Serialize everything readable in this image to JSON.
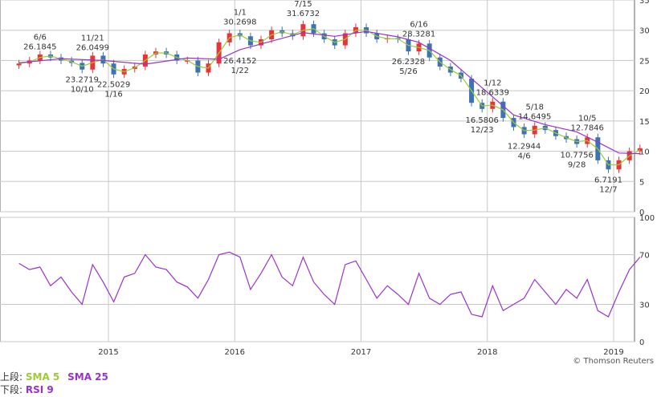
{
  "colors": {
    "up": "#e8333a",
    "down": "#3d72b6",
    "sma5": "#9acd32",
    "sma25": "#9932cc",
    "rsi": "#9932cc",
    "grid": "#c8c8c8",
    "frame": "#666666",
    "label": "#333333"
  },
  "legend": {
    "upper_label": "上段:",
    "sma5": "SMA 5",
    "sma25": "SMA 25",
    "lower_label": "下段:",
    "rsi": "RSI 9"
  },
  "credit": "© Thomson Reuters",
  "chart_data": [
    {
      "type": "candlestick",
      "ylim": [
        0,
        35
      ],
      "yticks": [
        0,
        5,
        10,
        15,
        20,
        25,
        30,
        35
      ],
      "x_range": [
        "2014-04",
        "2019-03"
      ],
      "xticks": [
        "2015",
        "2016",
        "2017",
        "2018",
        "2019"
      ],
      "grid": true,
      "series": [
        {
          "name": "SMA 5",
          "indicator": "sma5"
        },
        {
          "name": "SMA 25",
          "indicator": "sma25"
        }
      ],
      "closes": [
        {
          "t": "2014-04",
          "v": 24.5
        },
        {
          "t": "2014-05",
          "v": 25.0
        },
        {
          "t": "2014-06",
          "v": 26.0
        },
        {
          "t": "2014-07",
          "v": 25.5
        },
        {
          "t": "2014-08",
          "v": 25.0
        },
        {
          "t": "2014-09",
          "v": 24.6
        },
        {
          "t": "2014-10",
          "v": 23.5
        },
        {
          "t": "2014-11",
          "v": 25.8
        },
        {
          "t": "2014-12",
          "v": 24.5
        },
        {
          "t": "2015-01",
          "v": 22.7
        },
        {
          "t": "2015-02",
          "v": 23.6
        },
        {
          "t": "2015-03",
          "v": 24.0
        },
        {
          "t": "2015-04",
          "v": 26.0
        },
        {
          "t": "2015-05",
          "v": 26.5
        },
        {
          "t": "2015-06",
          "v": 26.0
        },
        {
          "t": "2015-07",
          "v": 25.0
        },
        {
          "t": "2015-08",
          "v": 25.0
        },
        {
          "t": "2015-09",
          "v": 23.0
        },
        {
          "t": "2015-10",
          "v": 24.5
        },
        {
          "t": "2015-11",
          "v": 28.0
        },
        {
          "t": "2015-12",
          "v": 29.5
        },
        {
          "t": "2016-01",
          "v": 29.0
        },
        {
          "t": "2016-02",
          "v": 27.5
        },
        {
          "t": "2016-03",
          "v": 28.5
        },
        {
          "t": "2016-04",
          "v": 30.0
        },
        {
          "t": "2016-05",
          "v": 29.5
        },
        {
          "t": "2016-06",
          "v": 29.0
        },
        {
          "t": "2016-07",
          "v": 31.0
        },
        {
          "t": "2016-08",
          "v": 29.5
        },
        {
          "t": "2016-09",
          "v": 28.5
        },
        {
          "t": "2016-10",
          "v": 27.5
        },
        {
          "t": "2016-11",
          "v": 29.5
        },
        {
          "t": "2016-12",
          "v": 30.5
        },
        {
          "t": "2017-01",
          "v": 29.5
        },
        {
          "t": "2017-02",
          "v": 28.5
        },
        {
          "t": "2017-03",
          "v": 28.7
        },
        {
          "t": "2017-04",
          "v": 28.5
        },
        {
          "t": "2017-05",
          "v": 26.5
        },
        {
          "t": "2017-06",
          "v": 27.8
        },
        {
          "t": "2017-07",
          "v": 25.5
        },
        {
          "t": "2017-08",
          "v": 24.0
        },
        {
          "t": "2017-09",
          "v": 23.0
        },
        {
          "t": "2017-10",
          "v": 22.0
        },
        {
          "t": "2017-11",
          "v": 18.0
        },
        {
          "t": "2017-12",
          "v": 17.0
        },
        {
          "t": "2018-01",
          "v": 18.2
        },
        {
          "t": "2018-02",
          "v": 15.5
        },
        {
          "t": "2018-03",
          "v": 14.0
        },
        {
          "t": "2018-04",
          "v": 12.8
        },
        {
          "t": "2018-05",
          "v": 14.2
        },
        {
          "t": "2018-06",
          "v": 13.5
        },
        {
          "t": "2018-07",
          "v": 12.5
        },
        {
          "t": "2018-08",
          "v": 12.0
        },
        {
          "t": "2018-09",
          "v": 11.2
        },
        {
          "t": "2018-10",
          "v": 12.3
        },
        {
          "t": "2018-11",
          "v": 8.5
        },
        {
          "t": "2018-12",
          "v": 7.0
        },
        {
          "t": "2019-01",
          "v": 8.5
        },
        {
          "t": "2019-02",
          "v": 10.0
        },
        {
          "t": "2019-03",
          "v": 10.5
        }
      ],
      "sma25": [
        {
          "t": "2014-04",
          "v": 24.6
        },
        {
          "t": "2014-08",
          "v": 25.3
        },
        {
          "t": "2014-12",
          "v": 25.0
        },
        {
          "t": "2015-04",
          "v": 24.4
        },
        {
          "t": "2015-08",
          "v": 25.4
        },
        {
          "t": "2015-11",
          "v": 25.2
        },
        {
          "t": "2016-01",
          "v": 26.8
        },
        {
          "t": "2016-04",
          "v": 28.2
        },
        {
          "t": "2016-07",
          "v": 29.6
        },
        {
          "t": "2016-10",
          "v": 29.0
        },
        {
          "t": "2017-01",
          "v": 29.8
        },
        {
          "t": "2017-04",
          "v": 28.9
        },
        {
          "t": "2017-06",
          "v": 28.0
        },
        {
          "t": "2017-09",
          "v": 25.0
        },
        {
          "t": "2017-12",
          "v": 20.5
        },
        {
          "t": "2018-03",
          "v": 16.0
        },
        {
          "t": "2018-06",
          "v": 14.4
        },
        {
          "t": "2018-09",
          "v": 13.2
        },
        {
          "t": "2018-11",
          "v": 11.5
        },
        {
          "t": "2019-01",
          "v": 9.7
        },
        {
          "t": "2019-03",
          "v": 9.6
        }
      ],
      "annotations": [
        {
          "t": "2014-06",
          "value": "26.1845",
          "date": "6/6",
          "pos": "above"
        },
        {
          "t": "2014-10",
          "value": "23.2719",
          "date": "10/10",
          "pos": "below"
        },
        {
          "t": "2014-11",
          "value": "26.0499",
          "date": "11/21",
          "pos": "above"
        },
        {
          "t": "2015-01",
          "value": "22.5029",
          "date": "1/16",
          "pos": "below"
        },
        {
          "t": "2016-01",
          "value": "30.2698",
          "date": "1/1",
          "pos": "above"
        },
        {
          "t": "2016-01",
          "value": "26.4152",
          "date": "1/22",
          "pos": "below"
        },
        {
          "t": "2016-07",
          "value": "31.6732",
          "date": "7/15",
          "pos": "above"
        },
        {
          "t": "2017-05",
          "value": "26.2328",
          "date": "5/26",
          "pos": "below"
        },
        {
          "t": "2017-06",
          "value": "28.3281",
          "date": "6/16",
          "pos": "above"
        },
        {
          "t": "2017-12",
          "value": "16.5806",
          "date": "12/23",
          "pos": "below"
        },
        {
          "t": "2018-01",
          "value": "18.6339",
          "date": "1/12",
          "pos": "above"
        },
        {
          "t": "2018-04",
          "value": "12.2944",
          "date": "4/6",
          "pos": "below"
        },
        {
          "t": "2018-05",
          "value": "14.6495",
          "date": "5/18",
          "pos": "above"
        },
        {
          "t": "2018-09",
          "value": "10.7756",
          "date": "9/28",
          "pos": "below"
        },
        {
          "t": "2018-10",
          "value": "12.7846",
          "date": "10/5",
          "pos": "above"
        },
        {
          "t": "2018-12",
          "value": "6.7191",
          "date": "12/7",
          "pos": "below"
        }
      ]
    },
    {
      "type": "line",
      "ylim": [
        0,
        100
      ],
      "yticks": [
        0,
        30,
        70,
        100
      ],
      "xticks": [
        "2015",
        "2016",
        "2017",
        "2018",
        "2019"
      ],
      "grid": true,
      "series": [
        {
          "name": "RSI 9",
          "points": [
            {
              "t": "2014-04",
              "v": 63
            },
            {
              "t": "2014-05",
              "v": 58
            },
            {
              "t": "2014-06",
              "v": 60
            },
            {
              "t": "2014-07",
              "v": 45
            },
            {
              "t": "2014-08",
              "v": 52
            },
            {
              "t": "2014-09",
              "v": 40
            },
            {
              "t": "2014-10",
              "v": 30
            },
            {
              "t": "2014-11",
              "v": 62
            },
            {
              "t": "2014-12",
              "v": 48
            },
            {
              "t": "2015-01",
              "v": 32
            },
            {
              "t": "2015-02",
              "v": 52
            },
            {
              "t": "2015-03",
              "v": 55
            },
            {
              "t": "2015-04",
              "v": 70
            },
            {
              "t": "2015-05",
              "v": 60
            },
            {
              "t": "2015-06",
              "v": 58
            },
            {
              "t": "2015-07",
              "v": 48
            },
            {
              "t": "2015-08",
              "v": 44
            },
            {
              "t": "2015-09",
              "v": 35
            },
            {
              "t": "2015-10",
              "v": 50
            },
            {
              "t": "2015-11",
              "v": 70
            },
            {
              "t": "2015-12",
              "v": 72
            },
            {
              "t": "2016-01",
              "v": 68
            },
            {
              "t": "2016-02",
              "v": 42
            },
            {
              "t": "2016-03",
              "v": 55
            },
            {
              "t": "2016-04",
              "v": 70
            },
            {
              "t": "2016-05",
              "v": 52
            },
            {
              "t": "2016-06",
              "v": 45
            },
            {
              "t": "2016-07",
              "v": 68
            },
            {
              "t": "2016-08",
              "v": 48
            },
            {
              "t": "2016-09",
              "v": 38
            },
            {
              "t": "2016-10",
              "v": 30
            },
            {
              "t": "2016-11",
              "v": 62
            },
            {
              "t": "2016-12",
              "v": 65
            },
            {
              "t": "2017-01",
              "v": 50
            },
            {
              "t": "2017-02",
              "v": 35
            },
            {
              "t": "2017-03",
              "v": 45
            },
            {
              "t": "2017-04",
              "v": 38
            },
            {
              "t": "2017-05",
              "v": 30
            },
            {
              "t": "2017-06",
              "v": 55
            },
            {
              "t": "2017-07",
              "v": 35
            },
            {
              "t": "2017-08",
              "v": 30
            },
            {
              "t": "2017-09",
              "v": 38
            },
            {
              "t": "2017-10",
              "v": 40
            },
            {
              "t": "2017-11",
              "v": 22
            },
            {
              "t": "2017-12",
              "v": 20
            },
            {
              "t": "2018-01",
              "v": 45
            },
            {
              "t": "2018-02",
              "v": 25
            },
            {
              "t": "2018-03",
              "v": 30
            },
            {
              "t": "2018-04",
              "v": 35
            },
            {
              "t": "2018-05",
              "v": 50
            },
            {
              "t": "2018-06",
              "v": 40
            },
            {
              "t": "2018-07",
              "v": 30
            },
            {
              "t": "2018-08",
              "v": 42
            },
            {
              "t": "2018-09",
              "v": 35
            },
            {
              "t": "2018-10",
              "v": 50
            },
            {
              "t": "2018-11",
              "v": 25
            },
            {
              "t": "2018-12",
              "v": 20
            },
            {
              "t": "2019-01",
              "v": 40
            },
            {
              "t": "2019-02",
              "v": 58
            },
            {
              "t": "2019-03",
              "v": 68
            }
          ]
        }
      ]
    }
  ]
}
